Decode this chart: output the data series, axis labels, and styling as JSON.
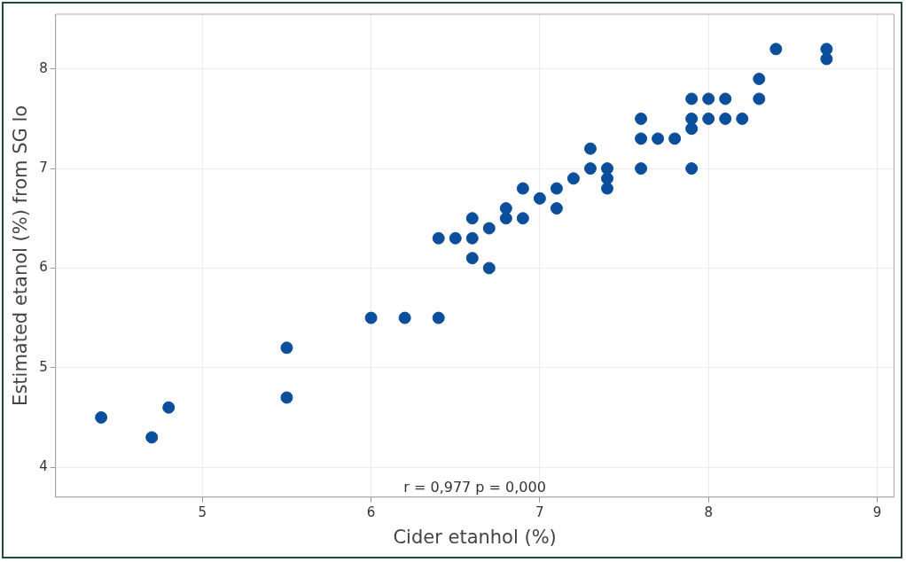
{
  "chart_data": {
    "type": "scatter",
    "xlabel": "Cider etanhol (%)",
    "ylabel": "Estimated etanol (%) from SG lo",
    "annotations": [
      "r = 0,977  p = 0,000"
    ],
    "series": [
      {
        "color": "#0b4f9c",
        "x": [
          4.4,
          4.7,
          4.8,
          5.5,
          5.5,
          6.0,
          6.2,
          6.4,
          6.4,
          6.5,
          6.6,
          6.6,
          6.6,
          6.7,
          6.7,
          6.8,
          6.8,
          6.9,
          6.9,
          7.0,
          7.1,
          7.1,
          7.2,
          7.3,
          7.3,
          7.4,
          7.4,
          7.4,
          7.6,
          7.6,
          7.6,
          7.7,
          7.8,
          7.9,
          7.9,
          7.9,
          7.9,
          8.0,
          8.0,
          8.1,
          8.1,
          8.2,
          8.3,
          8.3,
          8.4,
          8.7,
          8.7
        ],
        "values": [
          4.5,
          4.3,
          4.6,
          5.2,
          4.7,
          5.5,
          5.5,
          5.5,
          6.3,
          6.3,
          6.5,
          6.3,
          6.1,
          6.4,
          6.0,
          6.6,
          6.5,
          6.8,
          6.5,
          6.7,
          6.8,
          6.6,
          6.9,
          7.2,
          7.0,
          7.0,
          6.9,
          6.8,
          7.5,
          7.3,
          7.0,
          7.3,
          7.3,
          7.7,
          7.5,
          7.4,
          7.0,
          7.7,
          7.5,
          7.7,
          7.5,
          7.5,
          7.9,
          7.7,
          8.2,
          8.2,
          8.1
        ]
      }
    ],
    "xlim": [
      4.13,
      9.1
    ],
    "xticks": [
      5,
      6,
      7,
      8,
      9
    ],
    "ylim": [
      3.7,
      8.55
    ],
    "yticks": [
      4,
      5,
      6,
      7,
      8
    ],
    "grid": true,
    "legend": false,
    "marker": "circle"
  }
}
